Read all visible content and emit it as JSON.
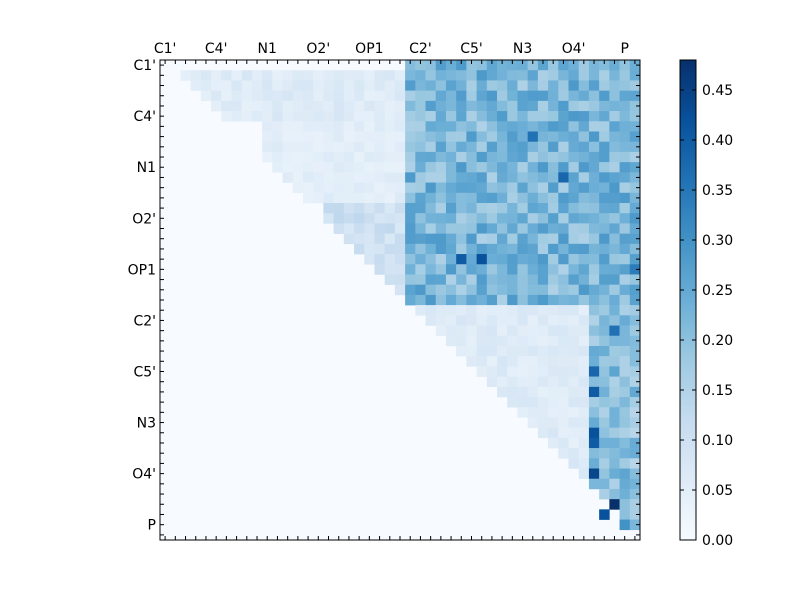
{
  "chart_data": {
    "type": "heatmap",
    "title": "",
    "xlabel": "",
    "ylabel": "",
    "colormap": "Blues",
    "colors": {
      "low": "#f7fbff",
      "mid": "#6baed6",
      "high": "#08306b"
    },
    "x_tick_labels": [
      "C1'",
      "C4'",
      "N1",
      "O2'",
      "OP1",
      "C2'",
      "C5'",
      "N3",
      "O4'",
      "P"
    ],
    "y_tick_labels": [
      "C1'",
      "C4'",
      "N1",
      "O2'",
      "OP1",
      "C2'",
      "C5'",
      "N3",
      "O4'",
      "P"
    ],
    "grid_size": 47,
    "label_every": 5,
    "colorbar": {
      "range": [
        0.0,
        0.48
      ],
      "ticks": [
        0.0,
        0.05,
        0.1,
        0.15,
        0.2,
        0.25,
        0.3,
        0.35,
        0.4,
        0.45
      ],
      "tick_labels": [
        "0.00",
        "0.05",
        "0.10",
        "0.15",
        "0.20",
        "0.25",
        "0.30",
        "0.35",
        "0.40",
        "0.45"
      ]
    },
    "region_values_note_free": true,
    "regions": [
      {
        "rows": [
          1,
          5
        ],
        "cols": [
          2,
          23
        ],
        "value": 0.06
      },
      {
        "rows": [
          6,
          13
        ],
        "cols": [
          10,
          23
        ],
        "value": 0.05
      },
      {
        "rows": [
          14,
          23
        ],
        "cols": [
          16,
          23
        ],
        "value": 0.1
      },
      {
        "rows": [
          0,
          23
        ],
        "cols": [
          24,
          46
        ],
        "value": 0.22
      },
      {
        "rows": [
          24,
          46
        ],
        "cols": [
          25,
          46
        ],
        "value": 0.06
      },
      {
        "rows": [
          24,
          46
        ],
        "cols": [
          42,
          46
        ],
        "value": 0.2
      }
    ],
    "highlights": [
      {
        "row": 7,
        "col": 36,
        "value": 0.36
      },
      {
        "row": 11,
        "col": 39,
        "value": 0.38
      },
      {
        "row": 19,
        "col": 29,
        "value": 0.4
      },
      {
        "row": 19,
        "col": 31,
        "value": 0.42
      },
      {
        "row": 20,
        "col": 46,
        "value": 0.34
      },
      {
        "row": 26,
        "col": 44,
        "value": 0.36
      },
      {
        "row": 30,
        "col": 42,
        "value": 0.38
      },
      {
        "row": 32,
        "col": 42,
        "value": 0.4
      },
      {
        "row": 36,
        "col": 42,
        "value": 0.42
      },
      {
        "row": 37,
        "col": 42,
        "value": 0.4
      },
      {
        "row": 40,
        "col": 42,
        "value": 0.44
      },
      {
        "row": 43,
        "col": 44,
        "value": 0.48
      },
      {
        "row": 44,
        "col": 43,
        "value": 0.42
      },
      {
        "row": 45,
        "col": 45,
        "value": 0.3
      }
    ]
  }
}
